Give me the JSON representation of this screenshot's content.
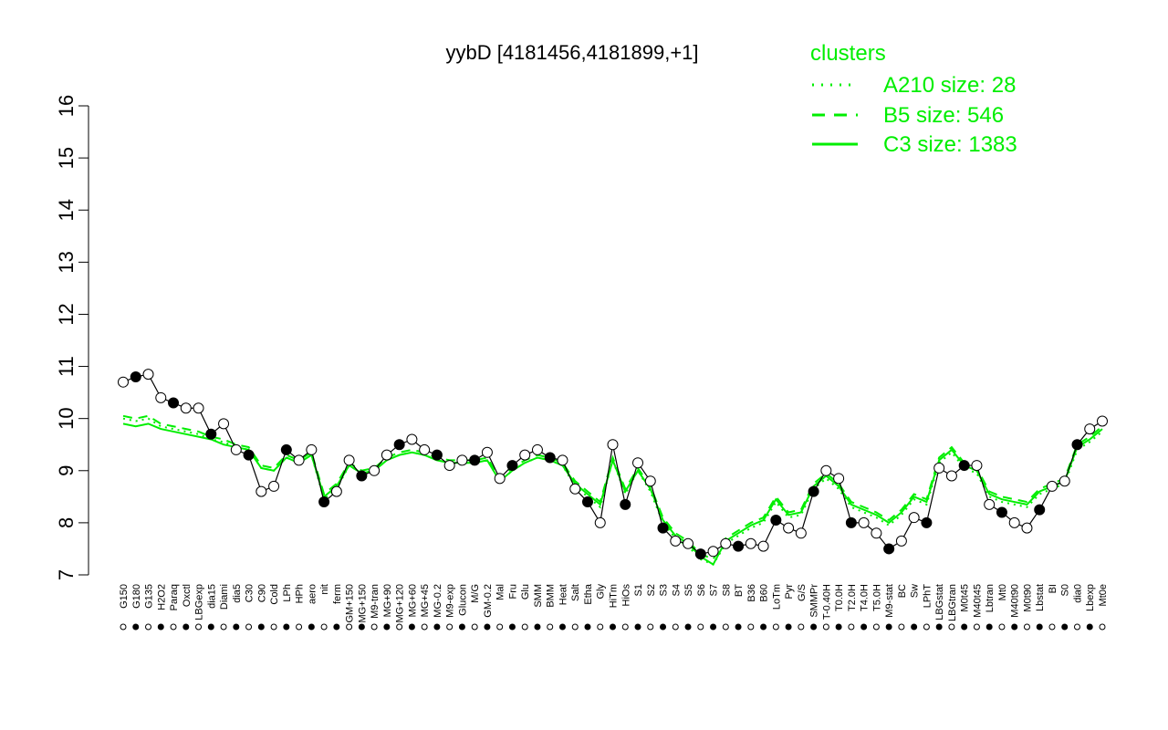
{
  "chart_data": {
    "type": "line",
    "title": "yybD [4181456,4181899,+1]",
    "xlabel": "",
    "ylabel": "",
    "ylim": [
      7,
      16
    ],
    "yticks": [
      "7",
      "8",
      "9",
      "10",
      "11",
      "12",
      "13",
      "14",
      "15",
      "16"
    ],
    "colors": {
      "cluster": "#00ee00",
      "data": "#000000",
      "point_fill": "#ffffff",
      "point_filled": "#000000"
    },
    "legend": {
      "title": "clusters",
      "position": "top-right",
      "entries": [
        {
          "label": "A210 size: 28",
          "style": "dotted"
        },
        {
          "label": "B5 size: 546",
          "style": "dashed"
        },
        {
          "label": "C3 size: 1383",
          "style": "solid"
        }
      ]
    },
    "categories": [
      "G150",
      "G180",
      "G135",
      "H2O2",
      "Paraq",
      "Oxctl",
      "LBGexp",
      "dia15",
      "Diami",
      "dia5",
      "C30",
      "C90",
      "Cold",
      "LPh",
      "HPh",
      "aero",
      "nit",
      "ferm",
      "GM+150",
      "MG+150",
      "M9-tran",
      "MG+90",
      "MG+120",
      "MG+60",
      "MG+45",
      "MG-0.2",
      "M9-exp",
      "Glucon",
      "M/G",
      "GM-0.2",
      "Mal",
      "Fru",
      "Glu",
      "SMM",
      "BMM",
      "Heat",
      "Salt",
      "Etha",
      "Gly",
      "HiTm",
      "HiOs",
      "S1",
      "S2",
      "S3",
      "S4",
      "S5",
      "S6",
      "S7",
      "S8",
      "BT",
      "B36",
      "B60",
      "LoTm",
      "Pyr",
      "G/S",
      "SMMPr",
      "T-0.40H",
      "T0.0H",
      "T2.0H",
      "T4.0H",
      "T5.0H",
      "M9-stat",
      "BC",
      "Sw",
      "LPhT",
      "LBGstat",
      "LBGtran",
      "M0t45",
      "M40t45",
      "Lbtran",
      "Mt0",
      "M40t90",
      "M0t90",
      "Lbstat",
      "BI",
      "S0",
      "dia0",
      "Lbexp",
      "Mt0e"
    ],
    "x": [
      0,
      1,
      2,
      3,
      4,
      5,
      6,
      7,
      8,
      9,
      10,
      11,
      12,
      13,
      14,
      15,
      16,
      17,
      18,
      19,
      20,
      21,
      22,
      23,
      24,
      25,
      26,
      27,
      28,
      29,
      30,
      31,
      32,
      33,
      34,
      35,
      36,
      37,
      38,
      39,
      40,
      41,
      42,
      43,
      44,
      45,
      46,
      47,
      48,
      49,
      50,
      51,
      52,
      53,
      54,
      55,
      56,
      57,
      58,
      59,
      60,
      61,
      62,
      63,
      64,
      65,
      66,
      67,
      68,
      69,
      70,
      71,
      72,
      73,
      74,
      75,
      76,
      77,
      78
    ],
    "series": [
      {
        "name": "",
        "style": "data",
        "values": [
          10.7,
          10.8,
          10.85,
          10.4,
          10.3,
          10.2,
          10.2,
          9.7,
          9.9,
          9.4,
          9.3,
          8.6,
          8.7,
          9.4,
          9.2,
          9.4,
          8.4,
          8.6,
          9.2,
          8.9,
          9.0,
          9.3,
          9.5,
          9.6,
          9.4,
          9.3,
          9.1,
          9.2,
          9.2,
          9.35,
          8.85,
          9.1,
          9.3,
          9.4,
          9.25,
          9.2,
          8.65,
          8.4,
          8.0,
          9.5,
          8.35,
          9.15,
          8.8,
          7.9,
          7.65,
          7.6,
          7.4,
          7.45,
          7.6,
          7.55,
          7.6,
          7.55,
          8.05,
          7.9,
          7.8,
          8.6,
          9.0,
          8.85,
          8.0,
          8.0,
          7.8,
          7.5,
          7.65,
          8.1,
          8.0,
          9.05,
          8.9,
          9.1,
          9.1,
          8.35,
          8.2,
          8.0,
          7.9,
          8.25,
          8.7,
          8.8,
          9.5,
          9.8,
          9.95
        ]
      },
      {
        "name": "",
        "style": "solid",
        "values": [
          9.9,
          9.85,
          9.9,
          9.8,
          9.75,
          9.7,
          9.65,
          9.6,
          9.5,
          9.45,
          9.4,
          9.05,
          9.0,
          9.25,
          9.15,
          9.3,
          8.5,
          8.7,
          9.1,
          8.95,
          9.0,
          9.2,
          9.3,
          9.35,
          9.3,
          9.2,
          9.15,
          9.15,
          9.15,
          9.2,
          8.8,
          9.0,
          9.15,
          9.25,
          9.2,
          9.1,
          8.75,
          8.55,
          8.35,
          9.2,
          8.6,
          9.0,
          8.65,
          8.05,
          7.75,
          7.6,
          7.35,
          7.2,
          7.65,
          7.8,
          7.95,
          8.05,
          8.45,
          8.15,
          8.2,
          8.7,
          8.9,
          8.7,
          8.35,
          8.25,
          8.15,
          8.0,
          8.2,
          8.5,
          8.4,
          9.2,
          9.4,
          9.1,
          9.0,
          8.55,
          8.45,
          8.4,
          8.35,
          8.6,
          8.7,
          8.8,
          9.45,
          9.6,
          9.8
        ]
      },
      {
        "name": "",
        "style": "dashed",
        "values": [
          10.05,
          10.0,
          10.05,
          9.9,
          9.85,
          9.8,
          9.75,
          9.65,
          9.6,
          9.5,
          9.45,
          9.1,
          9.05,
          9.3,
          9.2,
          9.35,
          8.55,
          8.75,
          9.15,
          9.0,
          9.05,
          9.25,
          9.35,
          9.4,
          9.35,
          9.25,
          9.2,
          9.2,
          9.2,
          9.25,
          8.85,
          9.05,
          9.2,
          9.3,
          9.25,
          9.15,
          8.8,
          8.6,
          8.4,
          9.25,
          8.65,
          9.05,
          8.7,
          8.1,
          7.8,
          7.65,
          7.4,
          7.3,
          7.7,
          7.85,
          8.0,
          8.1,
          8.5,
          8.2,
          8.25,
          8.75,
          8.95,
          8.75,
          8.4,
          8.3,
          8.2,
          8.05,
          8.25,
          8.55,
          8.45,
          9.25,
          9.45,
          9.15,
          9.05,
          8.6,
          8.5,
          8.45,
          8.4,
          8.65,
          8.75,
          8.85,
          9.5,
          9.65,
          9.85
        ]
      },
      {
        "name": "",
        "style": "dotted",
        "values": [
          10.0,
          9.95,
          10.0,
          9.85,
          9.8,
          9.75,
          9.7,
          9.6,
          9.55,
          9.45,
          9.4,
          9.05,
          9.0,
          9.25,
          9.15,
          9.3,
          8.45,
          8.65,
          9.1,
          8.95,
          9.0,
          9.2,
          9.3,
          9.35,
          9.3,
          9.2,
          9.15,
          9.15,
          9.15,
          9.2,
          8.8,
          9.0,
          9.15,
          9.25,
          9.2,
          9.1,
          8.7,
          8.5,
          8.3,
          9.2,
          8.55,
          9.0,
          8.6,
          8.0,
          7.7,
          7.55,
          7.3,
          7.2,
          7.6,
          7.75,
          7.9,
          8.0,
          8.4,
          8.1,
          8.15,
          8.65,
          8.85,
          8.65,
          8.3,
          8.2,
          8.1,
          7.95,
          8.15,
          8.45,
          8.35,
          9.15,
          9.35,
          9.05,
          8.95,
          8.5,
          8.4,
          8.35,
          8.3,
          8.55,
          8.65,
          8.75,
          9.4,
          9.55,
          9.75
        ]
      }
    ]
  }
}
